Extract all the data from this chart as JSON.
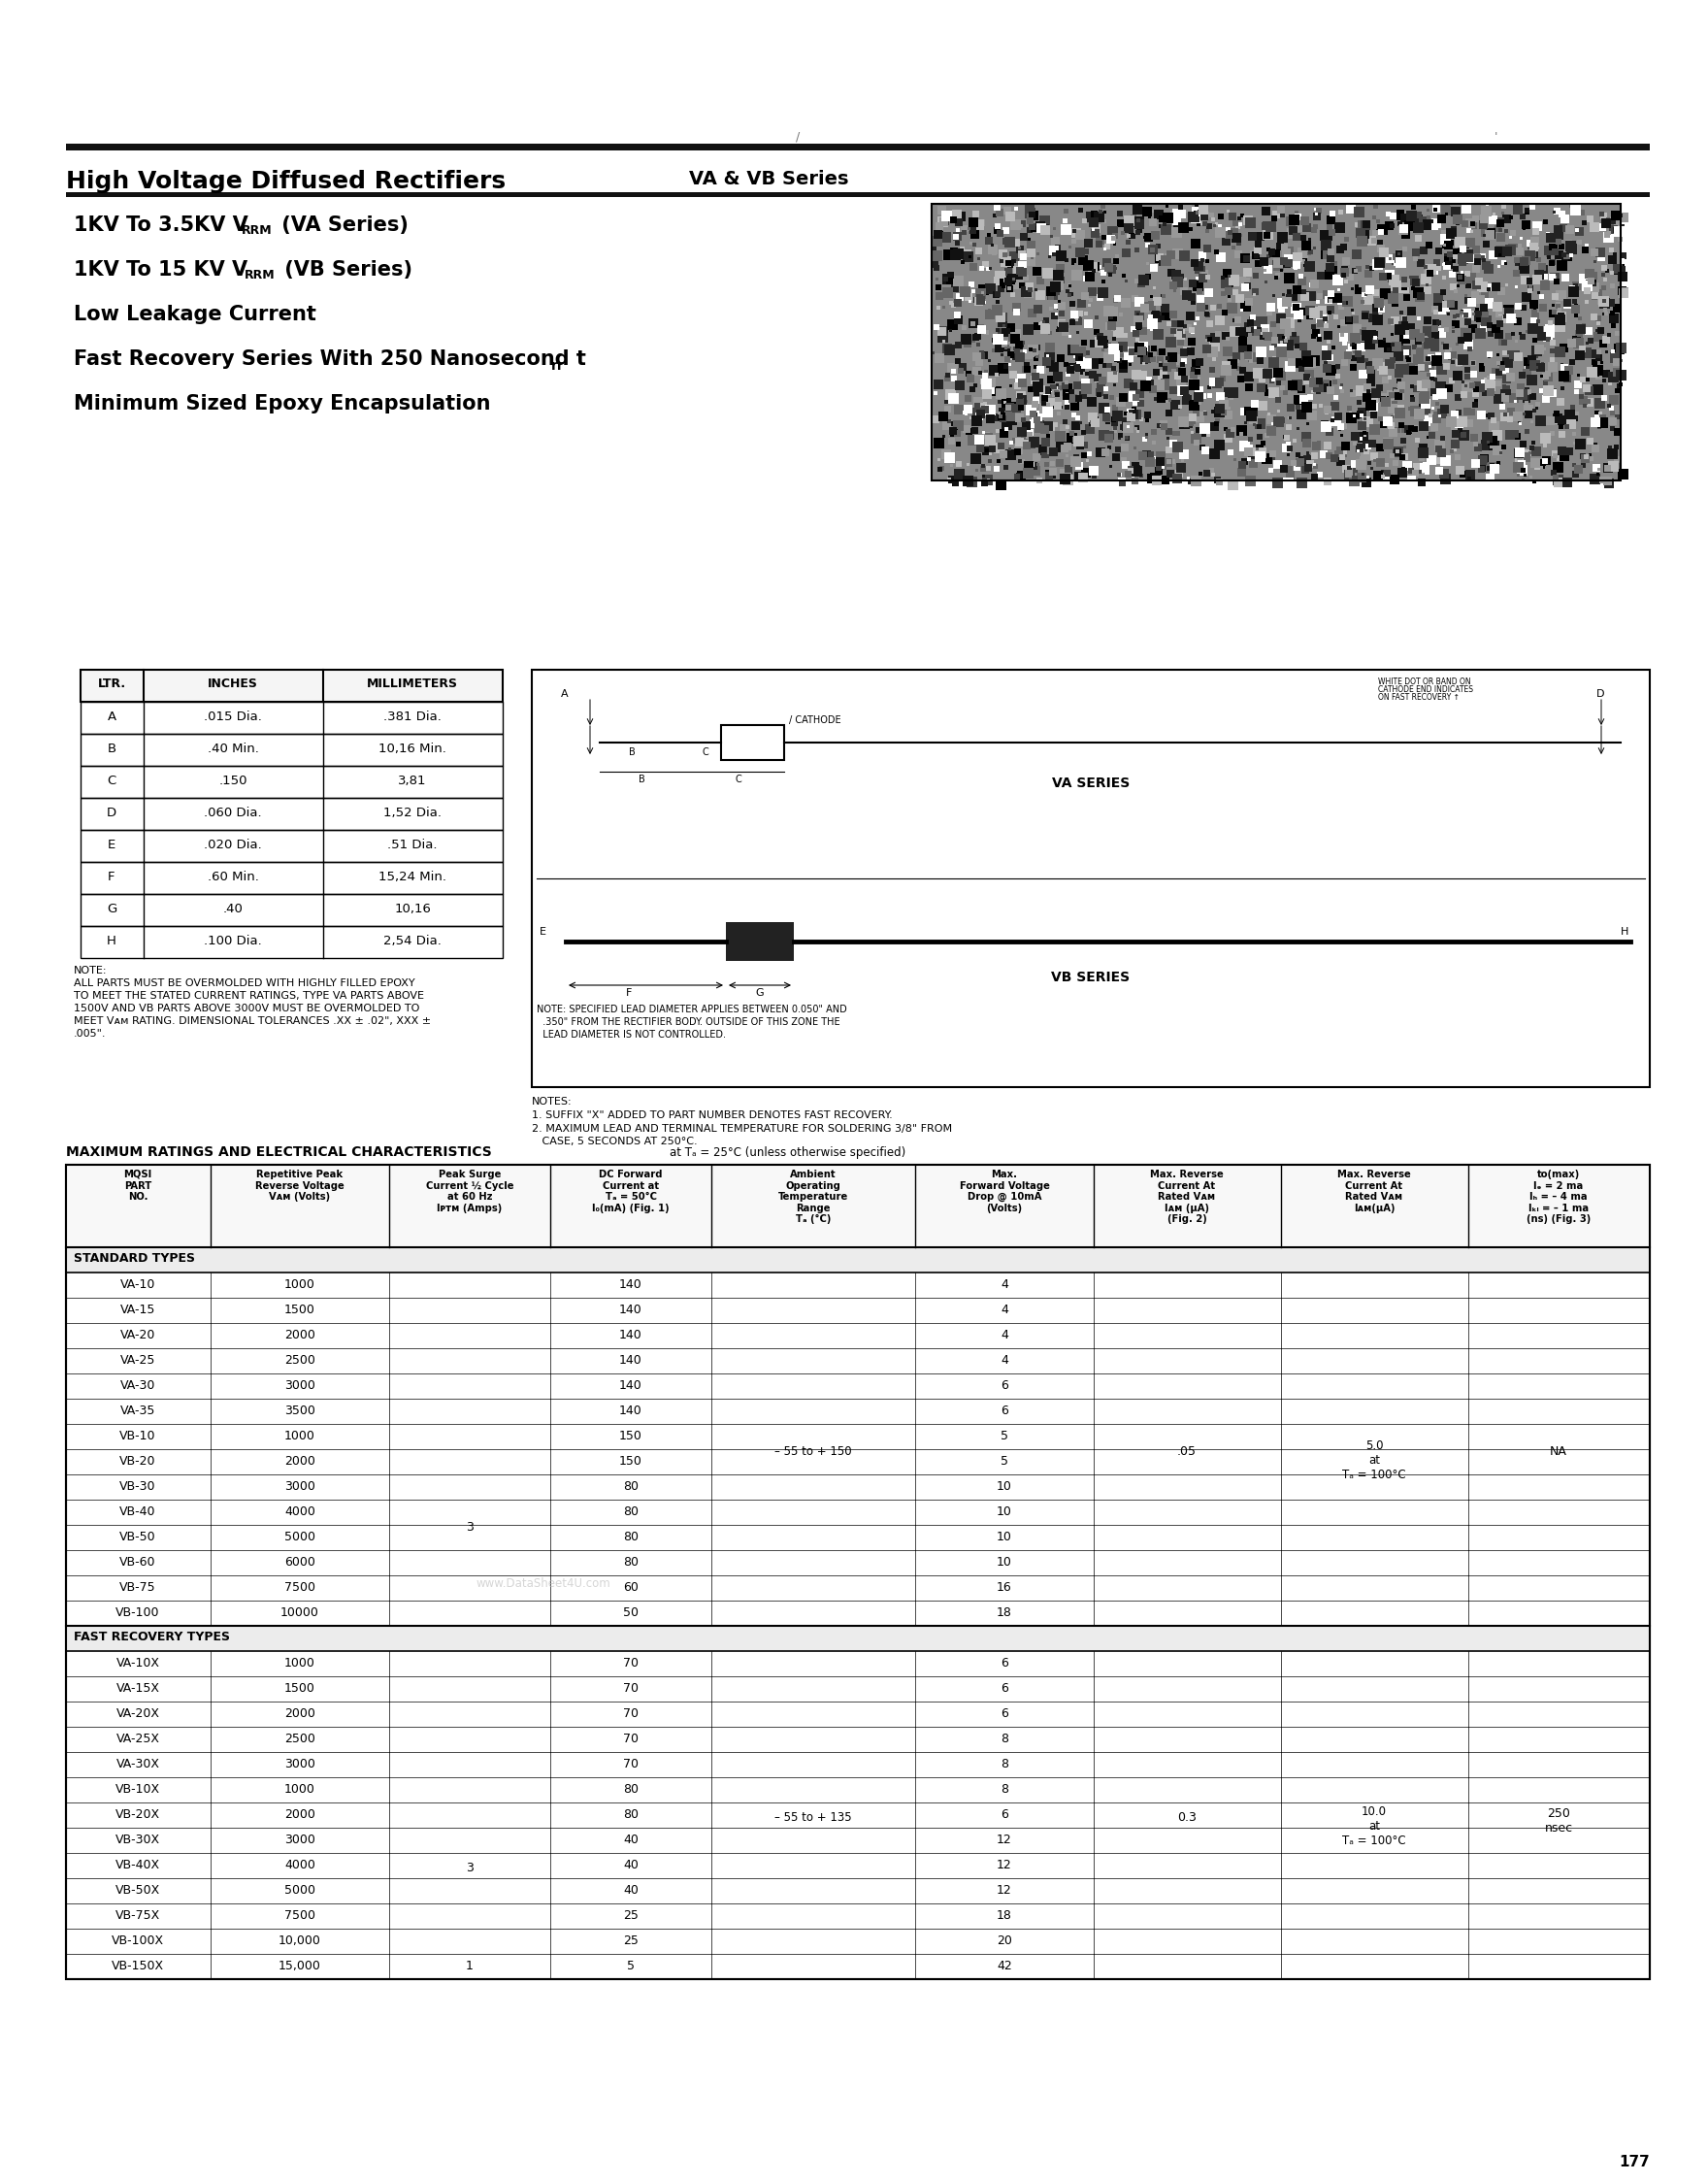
{
  "page_title": "High Voltage Diffused Rectifiers",
  "page_subtitle": "VA & VB Series",
  "page_number": "177",
  "dim_table_headers": [
    "LTR.",
    "INCHES",
    "MILLIMETERS"
  ],
  "dim_table_rows": [
    [
      "A",
      ".015 Dia.",
      ".381 Dia."
    ],
    [
      "B",
      ".40 Min.",
      "10,16 Min."
    ],
    [
      "C",
      ".150",
      "3,81"
    ],
    [
      "D",
      ".060 Dia.",
      "1,52 Dia."
    ],
    [
      "E",
      ".020 Dia.",
      ".51 Dia."
    ],
    [
      "F",
      ".60 Min.",
      "15,24 Min."
    ],
    [
      "G",
      ".40",
      "10,16"
    ],
    [
      "H",
      ".100 Dia.",
      "2,54 Dia."
    ]
  ],
  "std_rows": [
    [
      "VA-10",
      "1000",
      "",
      "140",
      "4"
    ],
    [
      "VA-15",
      "1500",
      "",
      "140",
      "4"
    ],
    [
      "VA-20",
      "2000",
      "",
      "140",
      "4"
    ],
    [
      "VA-25",
      "2500",
      "",
      "140",
      "4"
    ],
    [
      "VA-30",
      "3000",
      "",
      "140",
      "6"
    ],
    [
      "VA-35",
      "3500",
      "",
      "140",
      "6"
    ],
    [
      "VB-10",
      "1000",
      "3",
      "150",
      "5"
    ],
    [
      "VB-20",
      "2000",
      "",
      "150",
      "5"
    ],
    [
      "VB-30",
      "3000",
      "",
      "80",
      "10"
    ],
    [
      "VB-40",
      "4000",
      "",
      "80",
      "10"
    ],
    [
      "VB-50",
      "5000",
      "",
      "80",
      "10"
    ],
    [
      "VB-60",
      "6000",
      "",
      "80",
      "10"
    ],
    [
      "VB-75",
      "7500",
      "",
      "60",
      "16"
    ],
    [
      "VB-100",
      "10000",
      "",
      "50",
      "18"
    ]
  ],
  "fast_rows": [
    [
      "VA-10X",
      "1000",
      "",
      "70",
      "6"
    ],
    [
      "VA-15X",
      "1500",
      "",
      "70",
      "6"
    ],
    [
      "VA-20X",
      "2000",
      "",
      "70",
      "6"
    ],
    [
      "VA-25X",
      "2500",
      "",
      "70",
      "8"
    ],
    [
      "VA-30X",
      "3000",
      "",
      "70",
      "8"
    ],
    [
      "VB-10X",
      "1000",
      "3",
      "80",
      "8"
    ],
    [
      "VB-20X",
      "2000",
      "",
      "80",
      "6"
    ],
    [
      "VB-30X",
      "3000",
      "",
      "40",
      "12"
    ],
    [
      "VB-40X",
      "4000",
      "",
      "40",
      "12"
    ],
    [
      "VB-50X",
      "5000",
      "",
      "40",
      "12"
    ],
    [
      "VB-75X",
      "7500",
      "",
      "25",
      "18"
    ],
    [
      "VB-100X",
      "10,000",
      "",
      "25",
      "20"
    ],
    [
      "VB-150X",
      "15,000",
      "1",
      "5",
      "42"
    ]
  ],
  "bg_color": "#ffffff"
}
